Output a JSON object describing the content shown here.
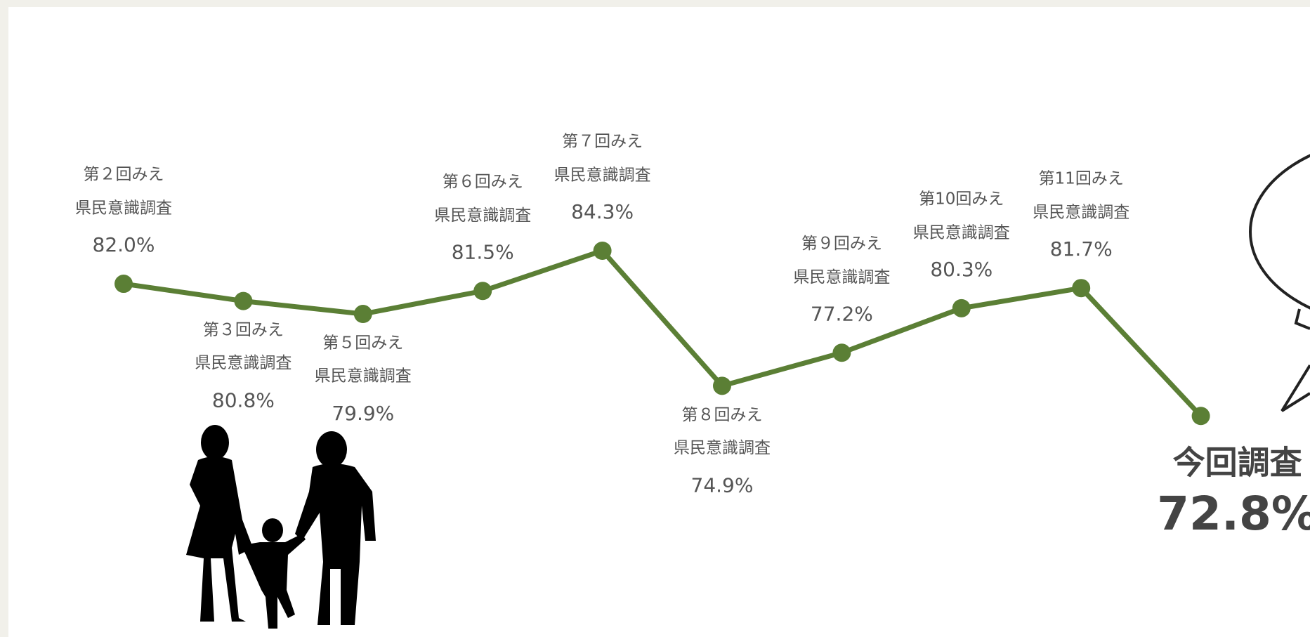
{
  "chart_data": {
    "type": "line",
    "categories": [
      [
        "第２回みえ",
        "県民意識調査"
      ],
      [
        "第３回みえ",
        "県民意識調査"
      ],
      [
        "第５回みえ",
        "県民意識調査"
      ],
      [
        "第６回みえ",
        "県民意識調査"
      ],
      [
        "第７回みえ",
        "県民意識調査"
      ],
      [
        "第８回みえ",
        "県民意識調査"
      ],
      [
        "第９回みえ",
        "県民意識調査"
      ],
      [
        "第10回みえ",
        "県民意識調査"
      ],
      [
        "第11回みえ",
        "県民意識調査"
      ],
      [
        "今回調査"
      ]
    ],
    "values": [
      82.0,
      80.8,
      79.9,
      81.5,
      84.3,
      74.9,
      77.2,
      80.3,
      81.7,
      72.8
    ],
    "value_labels": [
      "82.0%",
      "80.8%",
      "79.9%",
      "81.5%",
      "84.3%",
      "74.9%",
      "77.2%",
      "80.3%",
      "81.7%",
      "72.8%"
    ],
    "color": "#5b7f35"
  }
}
